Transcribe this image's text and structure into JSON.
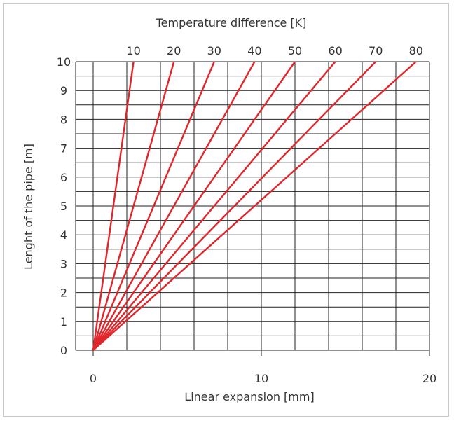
{
  "chart_data": {
    "type": "line",
    "title": "",
    "top_axis_label": "Temperature difference [K]",
    "xlabel": "Linear expansion [mm]",
    "ylabel": "Lenght of the pipe [m]",
    "xlim": [
      0,
      20
    ],
    "ylim": [
      0,
      10
    ],
    "x_ticks": [
      "0",
      "10",
      "20"
    ],
    "y_ticks": [
      "0",
      "1",
      "2",
      "3",
      "4",
      "5",
      "6",
      "7",
      "8",
      "9",
      "10"
    ],
    "grid": true,
    "line_color": "#e0262b",
    "series": [
      {
        "label": "10",
        "x": [
          0,
          2.4
        ],
        "y": [
          0,
          10
        ]
      },
      {
        "label": "20",
        "x": [
          0,
          4.8
        ],
        "y": [
          0,
          10
        ]
      },
      {
        "label": "30",
        "x": [
          0,
          7.2
        ],
        "y": [
          0,
          10
        ]
      },
      {
        "label": "40",
        "x": [
          0,
          9.6
        ],
        "y": [
          0,
          10
        ]
      },
      {
        "label": "50",
        "x": [
          0,
          12.0
        ],
        "y": [
          0,
          10
        ]
      },
      {
        "label": "60",
        "x": [
          0,
          14.4
        ],
        "y": [
          0,
          10
        ]
      },
      {
        "label": "70",
        "x": [
          0,
          16.8
        ],
        "y": [
          0,
          10
        ]
      },
      {
        "label": "80",
        "x": [
          0,
          19.2
        ],
        "y": [
          0,
          10
        ]
      }
    ]
  }
}
